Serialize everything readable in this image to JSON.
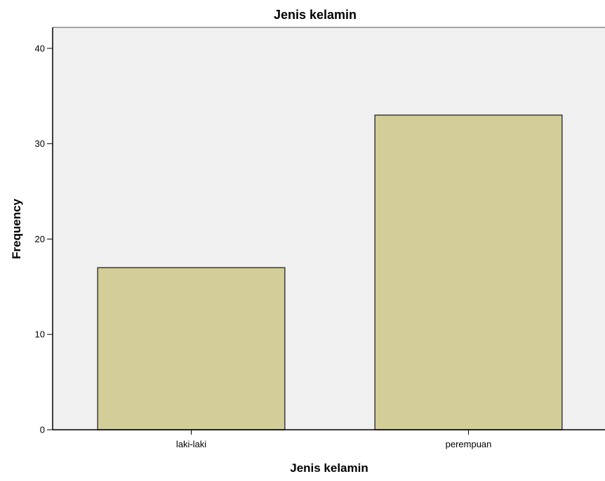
{
  "chart_data": {
    "type": "bar",
    "title": "Jenis kelamin",
    "xlabel": "Jenis kelamin",
    "ylabel": "Frequency",
    "categories": [
      "laki-laki",
      "perempuan"
    ],
    "values": [
      17,
      33
    ],
    "ylim": [
      0,
      42.2
    ],
    "yticks": [
      0,
      10,
      20,
      30,
      40
    ],
    "grid": false,
    "legend": "none",
    "colors": {
      "plot_background": "#f0f0f0",
      "bar_fill": "#d3ce97",
      "bar_stroke": "#3b3b3b",
      "axis": "#000000"
    }
  }
}
